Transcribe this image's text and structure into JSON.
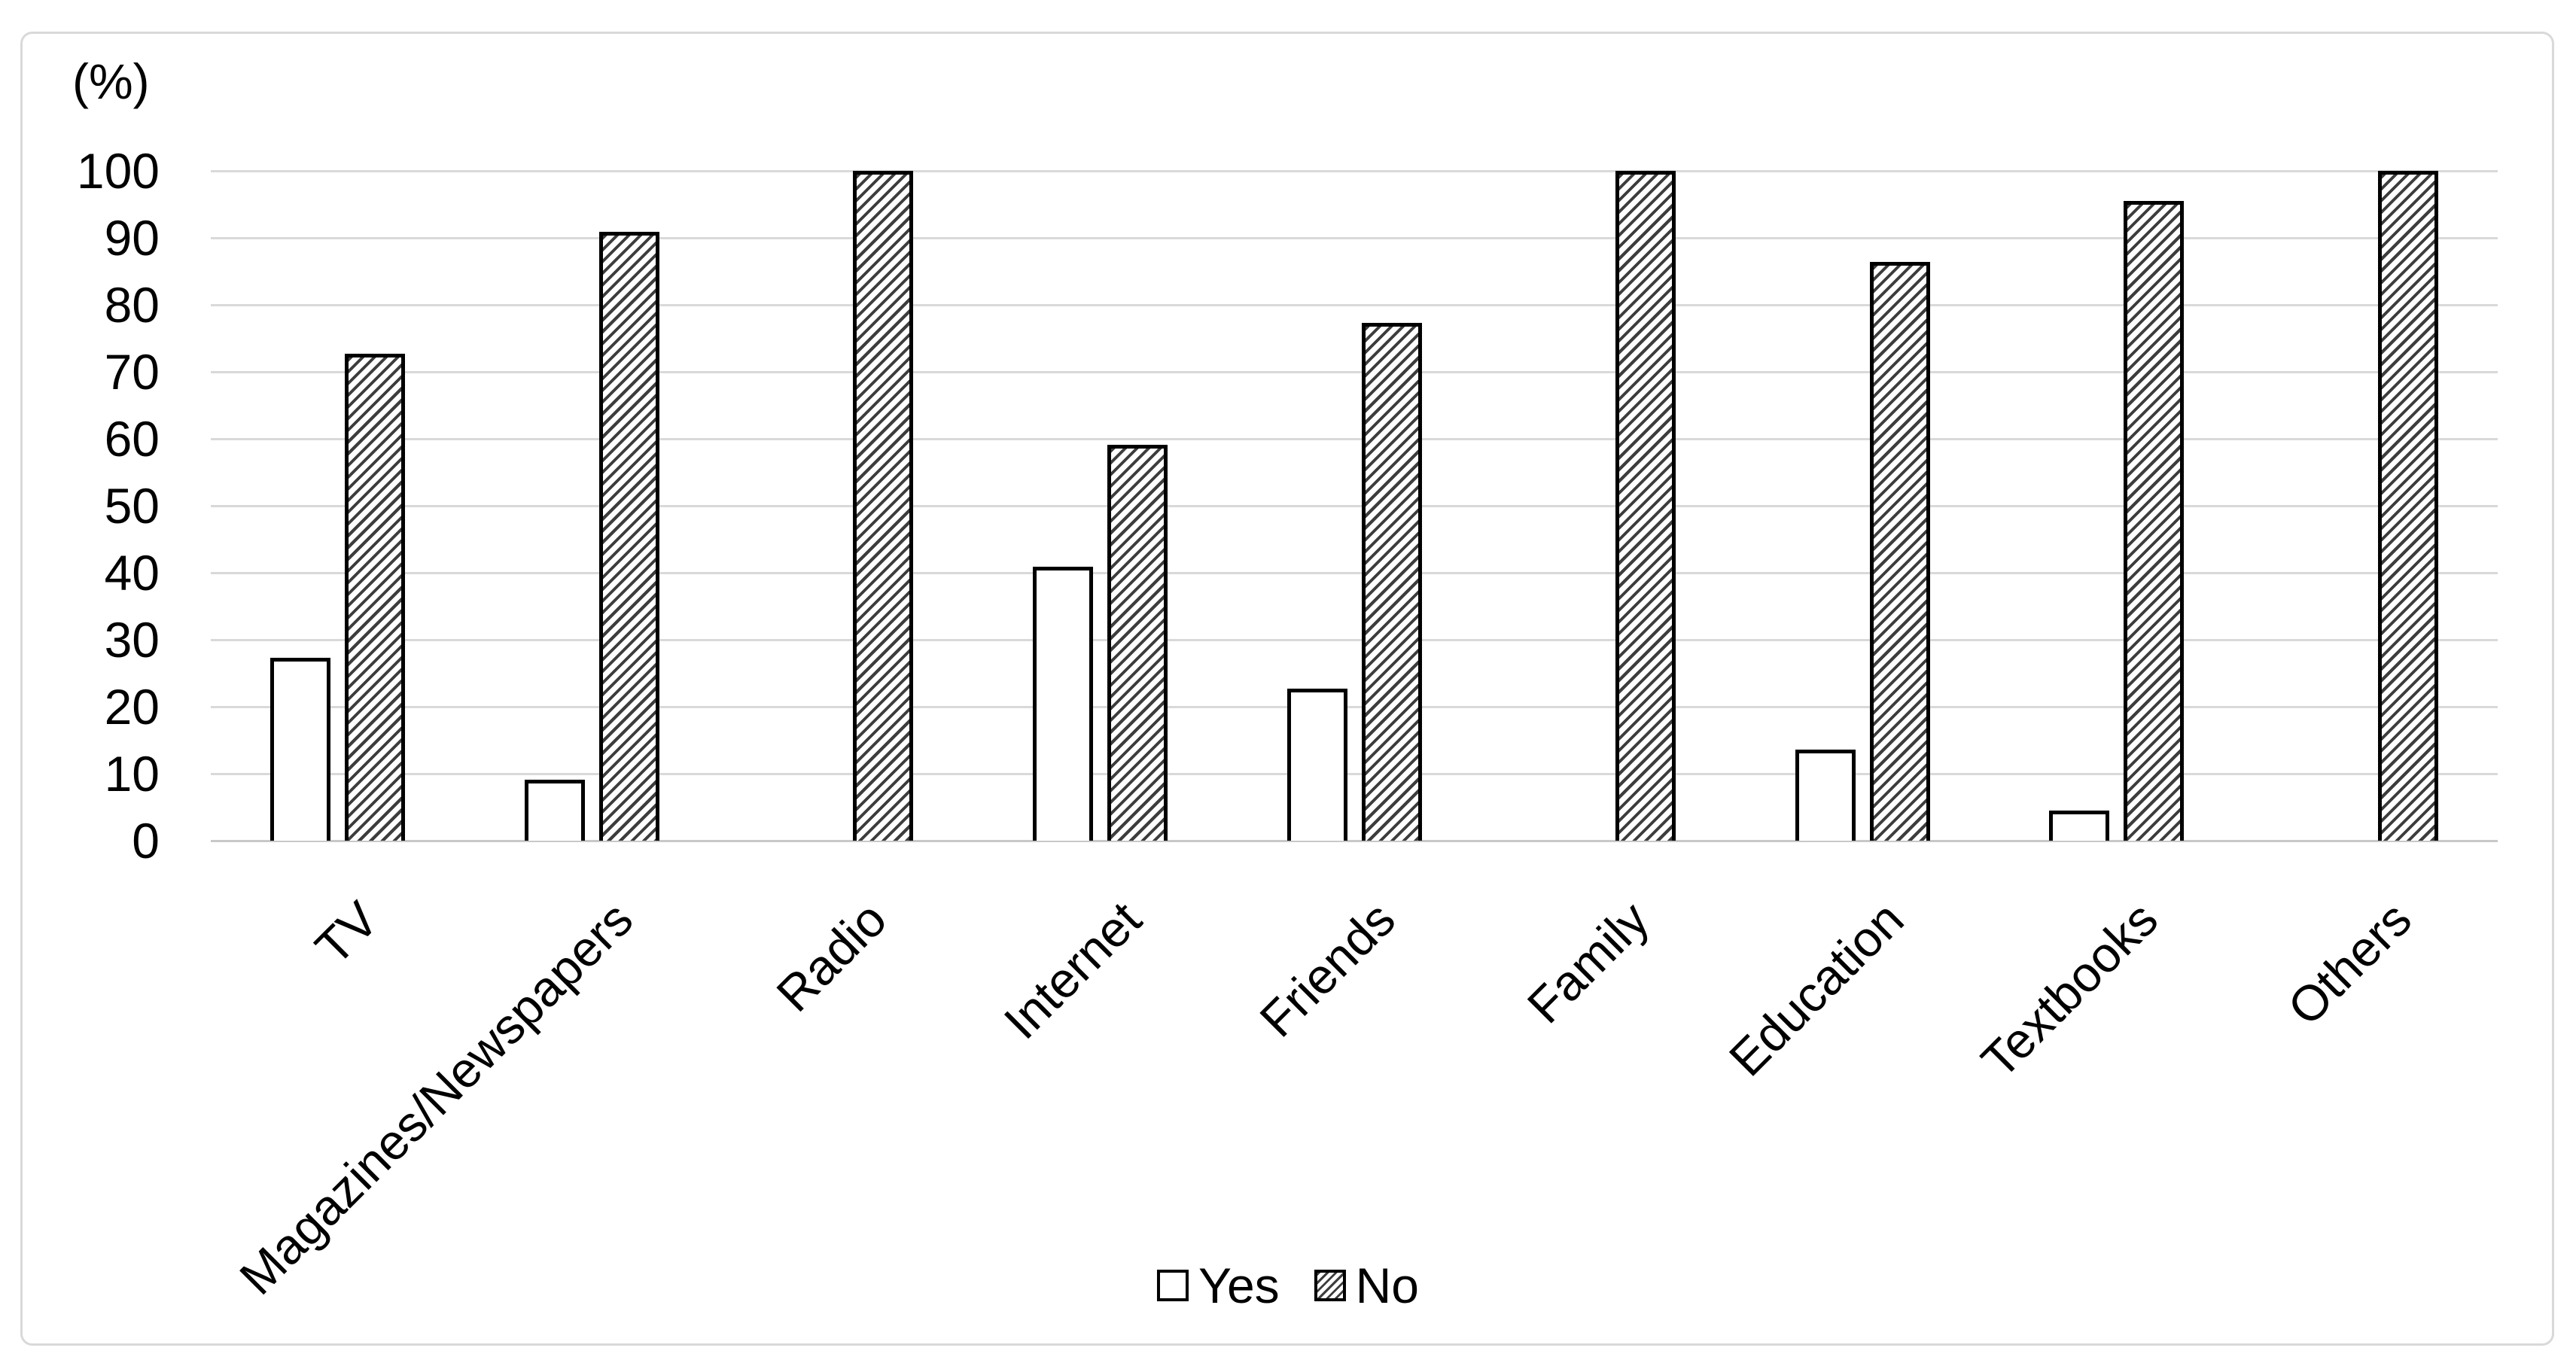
{
  "figure": {
    "y_axis_title": "(%)",
    "legend": {
      "items": [
        {
          "label": "Yes",
          "swatch": "plain-white-square"
        },
        {
          "label": "No",
          "swatch": "hatched-square"
        }
      ]
    },
    "colors": {
      "background": "#ffffff",
      "frame_border": "#d9d9d9",
      "gridline": "#d9d9d9",
      "bar_outline": "#000000",
      "hatch_stroke": "#3d3d3d",
      "text": "#000000"
    }
  },
  "chart_data": {
    "type": "bar",
    "title": "",
    "xlabel": "",
    "ylabel": "(%)",
    "categories": [
      "TV",
      "Magazines/Newspapers",
      "Radio",
      "Internet",
      "Friends",
      "Family",
      "Education",
      "Textbooks",
      "Others"
    ],
    "series": [
      {
        "name": "Yes",
        "style": "plain",
        "values": [
          27.3,
          9.1,
          0,
          40.9,
          22.7,
          0,
          13.6,
          4.5,
          0
        ]
      },
      {
        "name": "No",
        "style": "hatch",
        "values": [
          72.7,
          90.9,
          100,
          59.1,
          77.3,
          100,
          86.4,
          95.5,
          100
        ]
      }
    ],
    "ylim": [
      0,
      100
    ],
    "ytick_step": 10,
    "grid": true,
    "legend_position": "bottom",
    "x_tick_rotation_deg": -45
  }
}
